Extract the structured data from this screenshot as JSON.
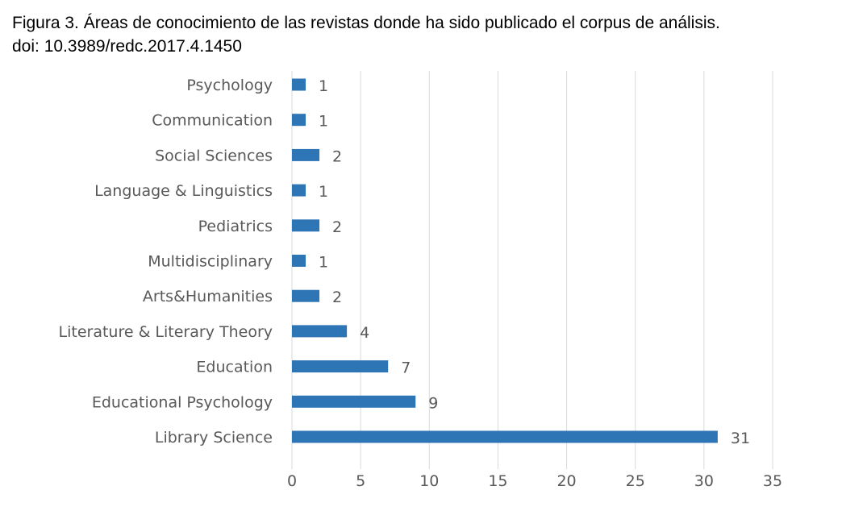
{
  "caption": {
    "line1": "Figura 3. Áreas de conocimiento de las revistas donde ha sido publicado el corpus de análisis.",
    "line2": "doi: 10.3989/redc.2017.4.1450"
  },
  "chart_data": {
    "type": "bar",
    "orientation": "horizontal",
    "categories": [
      "Psychology",
      "Communication",
      "Social Sciences",
      "Language & Linguistics",
      "Pediatrics",
      "Multidisciplinary",
      "Arts&Humanities",
      "Literature & Literary Theory",
      "Education",
      "Educational Psychology",
      "Library Science"
    ],
    "values": [
      1,
      1,
      2,
      1,
      2,
      1,
      2,
      4,
      7,
      9,
      31
    ],
    "xlim": [
      0,
      35
    ],
    "xticks": [
      0,
      5,
      10,
      15,
      20,
      25,
      30,
      35
    ],
    "grid": true,
    "data_labels": true,
    "bar_color": "#2E75B6",
    "grid_color": "#D9D9D9",
    "text_color": "#595959"
  }
}
